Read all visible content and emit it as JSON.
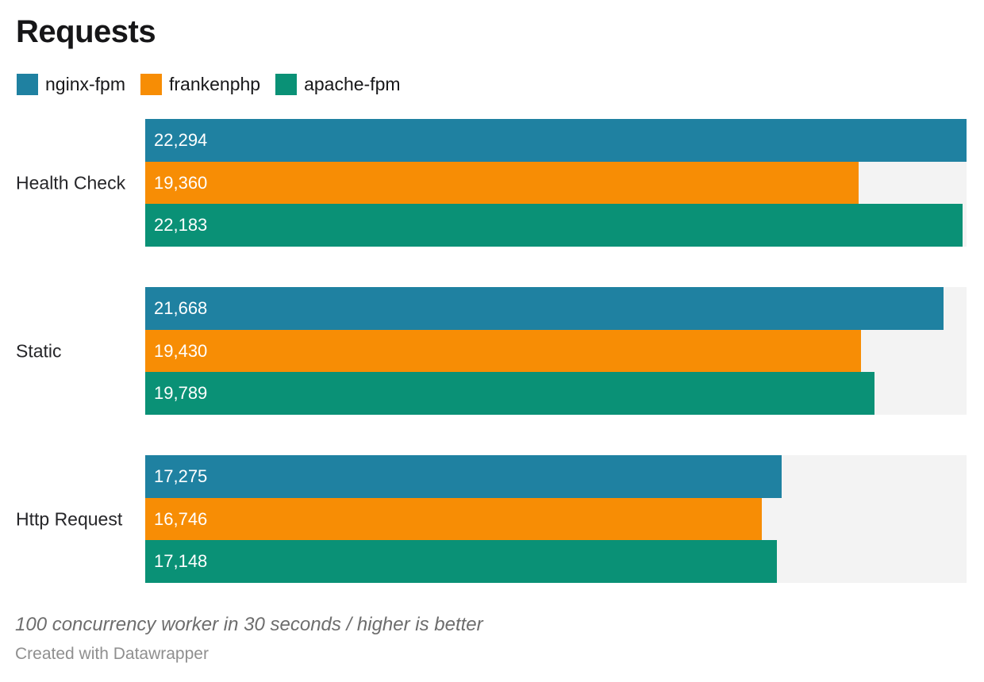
{
  "title": "Requests",
  "legend": {
    "items": [
      {
        "label": "nginx-fpm",
        "color": "#1f81a1"
      },
      {
        "label": "frankenphp",
        "color": "#f78d05"
      },
      {
        "label": "apache-fpm",
        "color": "#0a9176"
      }
    ]
  },
  "chart_data": {
    "type": "bar",
    "orientation": "horizontal",
    "title": "Requests",
    "categories": [
      "Health Check",
      "Static",
      "Http Request"
    ],
    "series": [
      {
        "name": "nginx-fpm",
        "color": "#1f81a1",
        "values": [
          22294,
          21668,
          17275
        ],
        "formatted": [
          "22,294",
          "21,668",
          "17,275"
        ]
      },
      {
        "name": "frankenphp",
        "color": "#f78d05",
        "values": [
          19360,
          19430,
          16746
        ],
        "formatted": [
          "19,360",
          "19,430",
          "16,746"
        ]
      },
      {
        "name": "apache-fpm",
        "color": "#0a9176",
        "values": [
          22183,
          19789,
          17148
        ],
        "formatted": [
          "22,183",
          "19,789",
          "17,148"
        ]
      }
    ],
    "xlim": [
      0,
      22294
    ],
    "value_labels_inside": true,
    "grid": false,
    "legend_position": "top",
    "track_color": "#f3f3f3",
    "note": "100 concurrency worker in 30 seconds / higher is better"
  },
  "footer": {
    "note": "100 concurrency worker in 30 seconds / higher is better",
    "credit": "Created with Datawrapper"
  }
}
